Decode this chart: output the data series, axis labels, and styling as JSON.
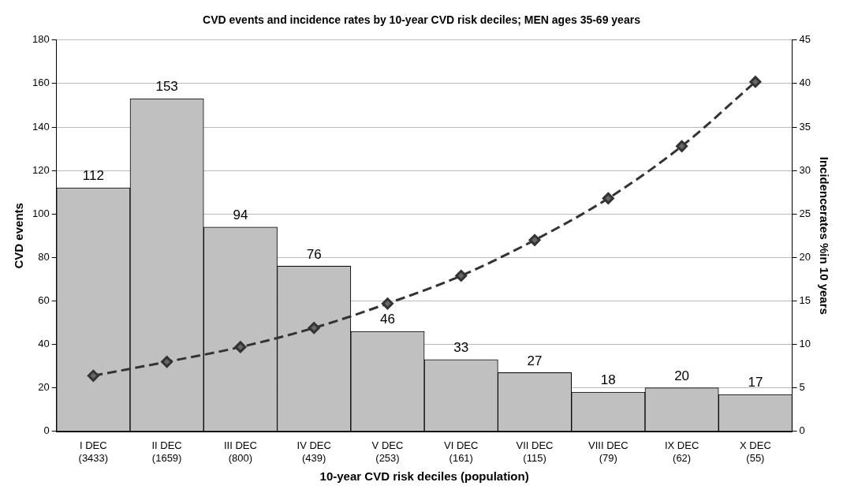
{
  "chart_data": {
    "type": "bar",
    "title": "CVD events and incidence rates by 10-year CVD risk deciles; MEN ages 35-69 years",
    "xlabel": "10-year CVD risk deciles (population)",
    "ylabel": "CVD events",
    "y2label": "Incidencerates %in 10 years",
    "categories": [
      "I DEC\n(3433)",
      "II DEC\n(1659)",
      "III DEC\n(800)",
      "IV DEC\n(439)",
      "V DEC\n(253)",
      "VI DEC\n(161)",
      "VII DEC\n(115)",
      "VIII DEC\n(79)",
      "IX DEC\n(62)",
      "X DEC\n(55)"
    ],
    "series": [
      {
        "color": "#c0c0c0",
        "values": [
          112,
          153,
          94,
          76,
          46,
          33,
          27,
          18,
          20,
          17
        ],
        "value_labels": [
          "112",
          "153",
          "94",
          "76",
          "46",
          "33",
          "27",
          "18",
          "20",
          "17"
        ]
      },
      {
        "type": "line",
        "axis": "y2",
        "color": "#333333",
        "marker": "diamond",
        "line_style": "dashed",
        "values": [
          6.4,
          8.0,
          9.7,
          11.9,
          14.7,
          17.9,
          22.0,
          26.8,
          32.8,
          40.2
        ]
      }
    ],
    "ylim": [
      0,
      180
    ],
    "yticks": [
      0,
      20,
      40,
      60,
      80,
      100,
      120,
      140,
      160,
      180
    ],
    "y2lim": [
      0,
      45
    ],
    "y2ticks": [
      0,
      5,
      10,
      15,
      20,
      25,
      30,
      35,
      40,
      45
    ],
    "grid": "y",
    "legend": false
  }
}
